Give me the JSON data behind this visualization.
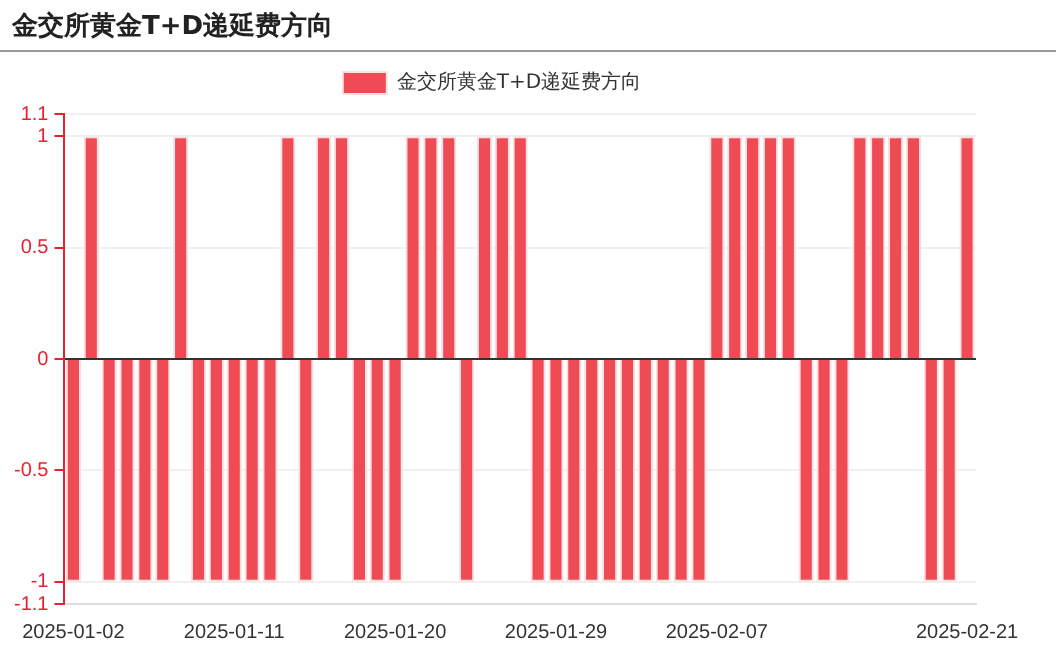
{
  "chart_data": {
    "type": "bar",
    "title": "金交所黄金T+D递延费方向",
    "categories": [
      "2025-01-02",
      null,
      null,
      null,
      null,
      null,
      null,
      null,
      null,
      "2025-01-11",
      null,
      null,
      null,
      null,
      null,
      null,
      null,
      null,
      "2025-01-20",
      null,
      null,
      null,
      null,
      null,
      null,
      null,
      null,
      "2025-01-29",
      null,
      null,
      null,
      null,
      null,
      null,
      null,
      null,
      "2025-02-07",
      null,
      null,
      null,
      null,
      null,
      null,
      null,
      null,
      null,
      null,
      null,
      null,
      null,
      "2025-02-21"
    ],
    "series": [
      {
        "name": "金交所黄金T+D递延费方向",
        "color": "#ef4b55",
        "values": [
          -1,
          1,
          -1,
          -1,
          -1,
          -1,
          1,
          -1,
          -1,
          -1,
          -1,
          -1,
          1,
          -1,
          1,
          1,
          -1,
          -1,
          -1,
          1,
          1,
          1,
          -1,
          1,
          1,
          1,
          -1,
          -1,
          -1,
          -1,
          -1,
          -1,
          -1,
          -1,
          -1,
          -1,
          1,
          1,
          1,
          1,
          1,
          -1,
          -1,
          -1,
          1,
          1,
          1,
          1,
          -1,
          -1,
          1
        ]
      }
    ],
    "ylim": [
      -1.1,
      1.1
    ],
    "yticks": [
      -1.1,
      -1,
      -0.5,
      0,
      0.5,
      1,
      1.1
    ],
    "grid": "y",
    "legend": "top"
  }
}
